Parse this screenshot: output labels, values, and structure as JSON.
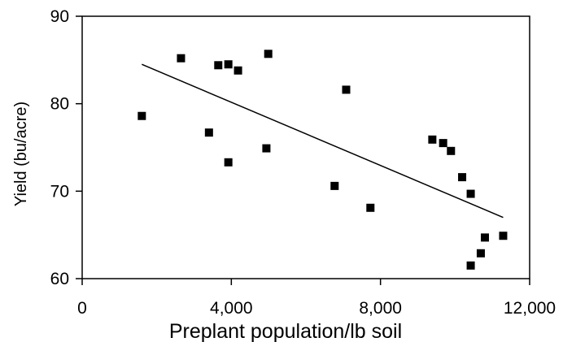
{
  "chart_data": {
    "type": "scatter",
    "title": "",
    "xlabel": "Preplant population/lb soil",
    "ylabel": "Yield (bu/acre)",
    "xlim": [
      0,
      12000
    ],
    "ylim": [
      60,
      90
    ],
    "xticks": [
      0,
      4000,
      8000,
      12000
    ],
    "yticks": [
      60,
      70,
      80,
      90
    ],
    "xtick_labels": [
      "0",
      "4,000",
      "8,000",
      "12,000"
    ],
    "ytick_labels": [
      "60",
      "70",
      "80",
      "90"
    ],
    "grid": false,
    "legend": false,
    "points": [
      {
        "x": 1600,
        "y": 78.6
      },
      {
        "x": 2650,
        "y": 85.2
      },
      {
        "x": 3400,
        "y": 76.7
      },
      {
        "x": 3650,
        "y": 84.4
      },
      {
        "x": 3920,
        "y": 84.5
      },
      {
        "x": 3920,
        "y": 73.3
      },
      {
        "x": 4180,
        "y": 83.8
      },
      {
        "x": 4940,
        "y": 74.9
      },
      {
        "x": 4990,
        "y": 85.7
      },
      {
        "x": 6770,
        "y": 70.6
      },
      {
        "x": 7080,
        "y": 81.6
      },
      {
        "x": 7730,
        "y": 68.1
      },
      {
        "x": 9390,
        "y": 75.9
      },
      {
        "x": 9680,
        "y": 75.5
      },
      {
        "x": 9890,
        "y": 74.6
      },
      {
        "x": 10190,
        "y": 71.6
      },
      {
        "x": 10420,
        "y": 69.7
      },
      {
        "x": 10420,
        "y": 61.5
      },
      {
        "x": 10690,
        "y": 62.9
      },
      {
        "x": 10800,
        "y": 64.7
      },
      {
        "x": 11290,
        "y": 64.9
      }
    ],
    "trendline": {
      "x1": 1600,
      "y1": 84.5,
      "x2": 11290,
      "y2": 67.0
    },
    "marker_color": "#000000",
    "line_color": "#000000"
  }
}
